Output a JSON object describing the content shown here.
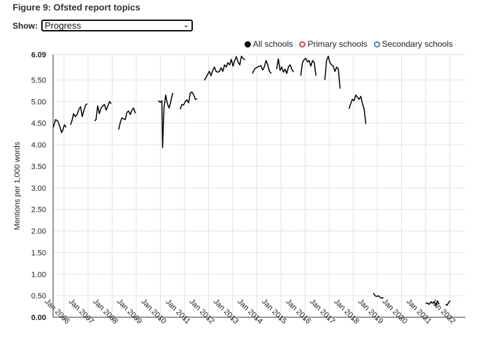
{
  "figure_title": "Figure 9: Ofsted report topics",
  "show": {
    "label": "Show:",
    "selected": "Progress"
  },
  "legend": [
    {
      "label": "All schools",
      "color": "#000000",
      "filled": true
    },
    {
      "label": "Primary schools",
      "color": "#c0504d",
      "filled": false
    },
    {
      "label": "Secondary schools",
      "color": "#4a86c5",
      "filled": false
    }
  ],
  "chart_data": {
    "type": "line",
    "ylabel": "Mentions per 1,000 words",
    "ylim": [
      0,
      6.09
    ],
    "ytick_values": [
      0,
      0.5,
      1,
      1.5,
      2,
      2.5,
      3,
      3.5,
      4,
      4.5,
      5,
      5.5,
      6.09
    ],
    "ytick_labels": [
      "0.00",
      "0.50",
      "1.00",
      "1.50",
      "2.00",
      "2.50",
      "3.00",
      "3.50",
      "4.00",
      "4.50",
      "5.00",
      "5.50",
      "6.09"
    ],
    "xlim": [
      2005.55,
      2022.65
    ],
    "xtick_values": [
      2006,
      2007,
      2008,
      2009,
      2010,
      2011,
      2012,
      2013,
      2014,
      2015,
      2016,
      2017,
      2018,
      2019,
      2020,
      2021,
      2022
    ],
    "xtick_labels": [
      "Jan 2006",
      "Jan 2007",
      "Jan 2008",
      "Jan 2009",
      "Jan 2010",
      "Jan 2011",
      "Jan 2012",
      "Jan 2013",
      "Jan 2014",
      "Jan 2015",
      "Jan 2016",
      "Jan 2017",
      "Jan 2018",
      "Jan 2019",
      "Jan 2020",
      "Jan 2021",
      "Jan 2022"
    ],
    "grid": true,
    "series": [
      {
        "name": "All schools",
        "color": "#000000",
        "segments": [
          [
            [
              2005.56,
              4.4
            ],
            [
              2005.65,
              4.58
            ],
            [
              2005.74,
              4.55
            ],
            [
              2005.83,
              4.42
            ],
            [
              2005.9,
              4.28
            ],
            [
              2005.96,
              4.35
            ],
            [
              2006.02,
              4.46
            ],
            [
              2006.09,
              4.4
            ]
          ],
          [
            [
              2006.27,
              4.46
            ],
            [
              2006.33,
              4.55
            ],
            [
              2006.4,
              4.72
            ],
            [
              2006.47,
              4.65
            ],
            [
              2006.55,
              4.7
            ],
            [
              2006.62,
              4.82
            ],
            [
              2006.69,
              4.88
            ],
            [
              2006.76,
              4.65
            ],
            [
              2006.83,
              4.8
            ],
            [
              2006.9,
              4.92
            ],
            [
              2006.97,
              4.95
            ]
          ],
          [
            [
              2007.27,
              4.55
            ],
            [
              2007.33,
              4.58
            ],
            [
              2007.4,
              4.9
            ],
            [
              2007.47,
              4.72
            ],
            [
              2007.54,
              4.85
            ],
            [
              2007.61,
              4.9
            ],
            [
              2007.68,
              4.93
            ],
            [
              2007.75,
              4.8
            ],
            [
              2007.82,
              4.9
            ],
            [
              2007.89,
              5.0
            ],
            [
              2007.96,
              4.95
            ]
          ],
          [
            [
              2008.27,
              4.35
            ],
            [
              2008.33,
              4.5
            ],
            [
              2008.4,
              4.62
            ],
            [
              2008.47,
              4.6
            ],
            [
              2008.54,
              4.58
            ],
            [
              2008.61,
              4.75
            ],
            [
              2008.68,
              4.78
            ],
            [
              2008.75,
              4.7
            ],
            [
              2008.82,
              4.8
            ],
            [
              2008.89,
              4.85
            ],
            [
              2008.96,
              4.73
            ]
          ],
          [
            [
              2009.91,
              5.02
            ],
            [
              2010.0,
              4.98
            ],
            [
              2010.06,
              5.02
            ],
            [
              2010.09,
              3.93
            ],
            [
              2010.15,
              4.85
            ],
            [
              2010.22,
              5.15
            ],
            [
              2010.29,
              4.95
            ],
            [
              2010.36,
              4.85
            ],
            [
              2010.43,
              5.0
            ],
            [
              2010.51,
              5.2
            ]
          ],
          [
            [
              2010.82,
              4.82
            ],
            [
              2010.89,
              4.93
            ],
            [
              2010.96,
              4.92
            ],
            [
              2011.03,
              5.0
            ],
            [
              2011.1,
              5.04
            ],
            [
              2011.17,
              4.97
            ],
            [
              2011.24,
              5.2
            ],
            [
              2011.31,
              5.22
            ],
            [
              2011.38,
              5.15
            ],
            [
              2011.45,
              5.05
            ],
            [
              2011.52,
              5.06
            ]
          ],
          [
            [
              2011.82,
              5.49
            ],
            [
              2011.89,
              5.55
            ],
            [
              2011.96,
              5.63
            ],
            [
              2012.03,
              5.7
            ],
            [
              2012.1,
              5.6
            ],
            [
              2012.17,
              5.72
            ],
            [
              2012.24,
              5.8
            ],
            [
              2012.31,
              5.7
            ],
            [
              2012.38,
              5.68
            ],
            [
              2012.45,
              5.7
            ],
            [
              2012.52,
              5.78
            ],
            [
              2012.59,
              5.7
            ],
            [
              2012.66,
              5.85
            ],
            [
              2012.73,
              5.8
            ],
            [
              2012.8,
              5.9
            ],
            [
              2012.87,
              5.85
            ],
            [
              2012.94,
              5.98
            ],
            [
              2013.01,
              5.82
            ],
            [
              2013.08,
              5.95
            ],
            [
              2013.15,
              6.04
            ],
            [
              2013.22,
              5.92
            ],
            [
              2013.29,
              5.85
            ],
            [
              2013.36,
              6.05
            ],
            [
              2013.43,
              6.0
            ],
            [
              2013.5,
              5.96
            ]
          ],
          [
            [
              2013.82,
              5.65
            ],
            [
              2013.89,
              5.74
            ],
            [
              2013.96,
              5.78
            ],
            [
              2014.03,
              5.8
            ],
            [
              2014.1,
              5.82
            ],
            [
              2014.17,
              5.83
            ],
            [
              2014.24,
              5.73
            ],
            [
              2014.31,
              5.8
            ],
            [
              2014.38,
              5.95
            ],
            [
              2014.45,
              5.85
            ],
            [
              2014.52,
              5.7
            ],
            [
              2014.6,
              5.65
            ]
          ],
          [
            [
              2014.82,
              5.75
            ],
            [
              2014.89,
              5.99
            ],
            [
              2014.96,
              5.72
            ],
            [
              2015.03,
              5.8
            ],
            [
              2015.1,
              5.68
            ],
            [
              2015.17,
              5.75
            ],
            [
              2015.24,
              5.65
            ],
            [
              2015.31,
              5.8
            ],
            [
              2015.38,
              5.85
            ],
            [
              2015.45,
              5.75
            ],
            [
              2015.52,
              5.68
            ]
          ],
          [
            [
              2015.82,
              5.6
            ],
            [
              2015.89,
              5.9
            ],
            [
              2015.96,
              5.97
            ],
            [
              2016.03,
              6.0
            ],
            [
              2016.1,
              5.92
            ],
            [
              2016.17,
              5.95
            ],
            [
              2016.24,
              5.82
            ],
            [
              2016.31,
              5.95
            ],
            [
              2016.38,
              5.9
            ],
            [
              2016.45,
              5.6
            ]
          ],
          [
            [
              2016.82,
              5.5
            ],
            [
              2016.89,
              5.95
            ],
            [
              2016.96,
              6.05
            ],
            [
              2017.03,
              5.9
            ],
            [
              2017.1,
              5.85
            ],
            [
              2017.17,
              5.82
            ],
            [
              2017.24,
              5.7
            ],
            [
              2017.31,
              5.8
            ],
            [
              2017.38,
              5.75
            ],
            [
              2017.45,
              5.3
            ]
          ],
          [
            [
              2017.82,
              4.83
            ],
            [
              2017.89,
              4.95
            ],
            [
              2017.96,
              5.05
            ],
            [
              2018.03,
              5.02
            ],
            [
              2018.1,
              5.15
            ],
            [
              2018.17,
              5.1
            ],
            [
              2018.24,
              5.05
            ],
            [
              2018.31,
              5.12
            ],
            [
              2018.38,
              4.95
            ],
            [
              2018.45,
              4.82
            ],
            [
              2018.52,
              4.48
            ]
          ],
          [
            [
              2018.83,
              0.56
            ],
            [
              2018.9,
              0.5
            ],
            [
              2018.97,
              0.48
            ],
            [
              2019.04,
              0.5
            ],
            [
              2019.11,
              0.46
            ],
            [
              2019.18,
              0.44
            ],
            [
              2019.25,
              0.46
            ]
          ],
          [
            [
              2021.0,
              0.32
            ],
            [
              2021.07,
              0.33
            ],
            [
              2021.14,
              0.3
            ],
            [
              2021.21,
              0.35
            ],
            [
              2021.28,
              0.33
            ],
            [
              2021.35,
              0.36
            ],
            [
              2021.42,
              0.28
            ],
            [
              2021.49,
              0.38
            ],
            [
              2021.56,
              0.3
            ]
          ],
          [
            [
              2021.82,
              0.3
            ],
            [
              2021.89,
              0.28
            ],
            [
              2021.96,
              0.35
            ],
            [
              2022.03,
              0.38
            ]
          ]
        ]
      }
    ]
  }
}
